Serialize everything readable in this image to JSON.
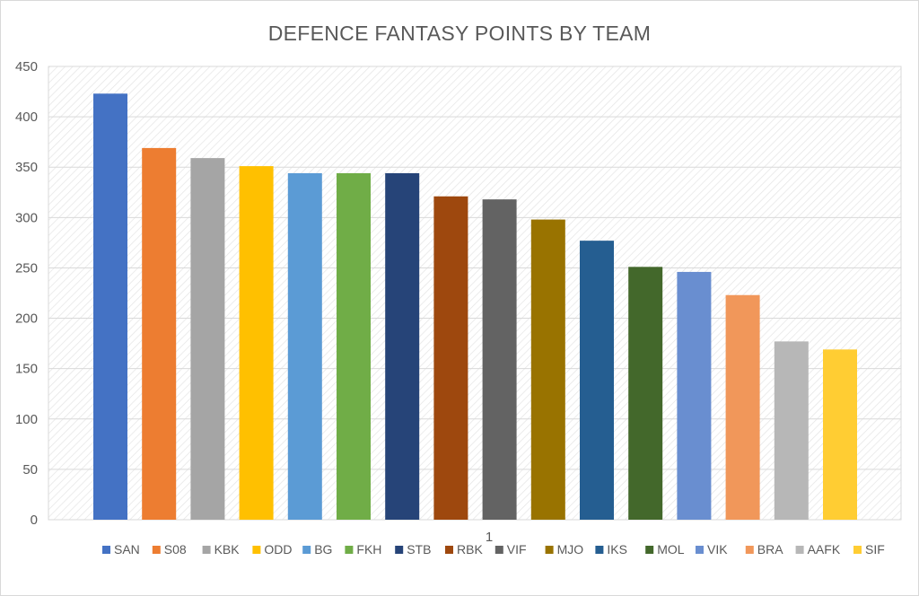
{
  "chart_data": {
    "type": "bar",
    "title": "DEFENCE FANTASY POINTS BY TEAM",
    "xlabel": "",
    "ylabel": "",
    "categories": [
      "1"
    ],
    "ylim": [
      0,
      450
    ],
    "yticks": [
      0,
      50,
      100,
      150,
      200,
      250,
      300,
      350,
      400,
      450
    ],
    "grid": true,
    "legend_position": "bottom",
    "series": [
      {
        "name": "SAN",
        "values": [
          423
        ],
        "color": "#4472C4"
      },
      {
        "name": "S08",
        "values": [
          369
        ],
        "color": "#ED7D31"
      },
      {
        "name": "KBK",
        "values": [
          359
        ],
        "color": "#A5A5A5"
      },
      {
        "name": "ODD",
        "values": [
          351
        ],
        "color": "#FFC000"
      },
      {
        "name": "BG",
        "values": [
          344
        ],
        "color": "#5B9BD5"
      },
      {
        "name": "FKH",
        "values": [
          344
        ],
        "color": "#70AD47"
      },
      {
        "name": "STB",
        "values": [
          344
        ],
        "color": "#264478"
      },
      {
        "name": "RBK",
        "values": [
          321
        ],
        "color": "#9E480E"
      },
      {
        "name": "VIF",
        "values": [
          318
        ],
        "color": "#636363"
      },
      {
        "name": "MJO",
        "values": [
          298
        ],
        "color": "#997300"
      },
      {
        "name": "IKS",
        "values": [
          277
        ],
        "color": "#255E91"
      },
      {
        "name": "MOL",
        "values": [
          251
        ],
        "color": "#43682B"
      },
      {
        "name": "VIK",
        "values": [
          246
        ],
        "color": "#698ED0"
      },
      {
        "name": "BRA",
        "values": [
          223
        ],
        "color": "#F1975A"
      },
      {
        "name": "AAFK",
        "values": [
          177
        ],
        "color": "#B7B7B7"
      },
      {
        "name": "SIF",
        "values": [
          169
        ],
        "color": "#FFCD33"
      }
    ]
  }
}
